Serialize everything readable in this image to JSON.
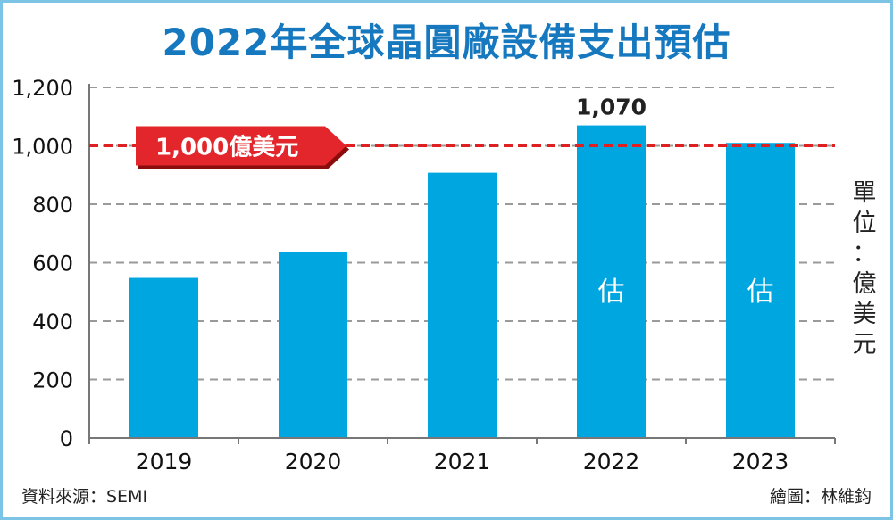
{
  "chart_data": {
    "type": "bar",
    "title": "2022年全球晶圓廠設備支出預估",
    "ylabel": "單位：億美元",
    "categories": [
      "2019",
      "2020",
      "2021",
      "2022",
      "2023"
    ],
    "values": [
      548,
      636,
      908,
      1070,
      1010
    ],
    "value_labels": [
      "",
      "",
      "",
      "1,070",
      ""
    ],
    "bar_annotations": [
      "",
      "",
      "",
      "估",
      "估"
    ],
    "ylim": [
      0,
      1200
    ],
    "yticks": [
      0,
      200,
      400,
      600,
      800,
      1000,
      1200
    ],
    "ytick_labels": [
      "0",
      "200",
      "400",
      "600",
      "800",
      "1,000",
      "1,200"
    ],
    "grid": true,
    "reference_line": {
      "value": 1000,
      "label": "1,000億美元",
      "color": "#e02020"
    },
    "bar_color": "#00a6e0"
  },
  "source": "資料來源：SEMI",
  "credit": "繪圖：林維鈞"
}
